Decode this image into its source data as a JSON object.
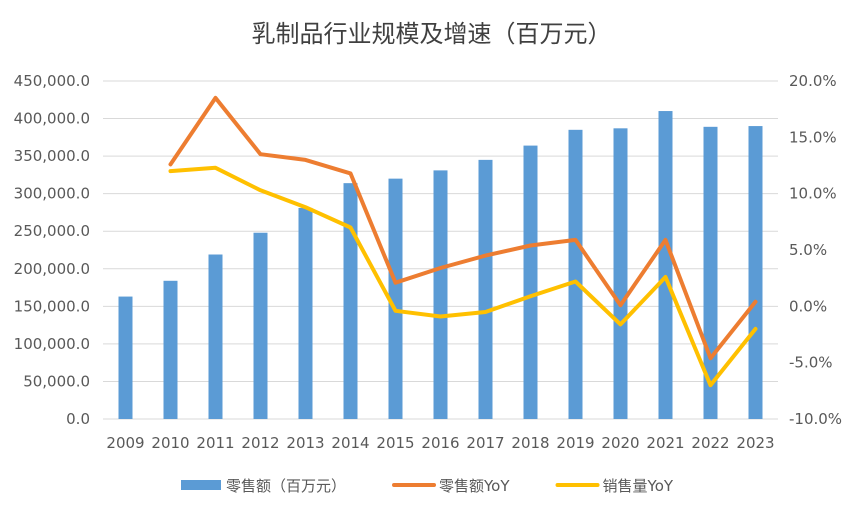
{
  "chart_data": {
    "type": "bar",
    "title": "乳制品行业规模及增速（百万元）",
    "categories": [
      "2009",
      "2010",
      "2011",
      "2012",
      "2013",
      "2014",
      "2015",
      "2016",
      "2017",
      "2018",
      "2019",
      "2020",
      "2021",
      "2022",
      "2023"
    ],
    "series": [
      {
        "name": "零售额（百万元）",
        "type": "bar",
        "axis": "left",
        "color": "#5B9BD5",
        "values": [
          163000,
          184000,
          219000,
          248000,
          281000,
          314000,
          320000,
          331000,
          345000,
          364000,
          385000,
          387000,
          410000,
          389000,
          390000
        ]
      },
      {
        "name": "零售额YoY",
        "type": "line",
        "axis": "right",
        "color": "#ED7D31",
        "values": [
          null,
          12.6,
          18.5,
          13.5,
          13.0,
          11.8,
          2.1,
          3.4,
          4.5,
          5.4,
          5.9,
          0.1,
          5.9,
          -4.6,
          0.4
        ]
      },
      {
        "name": "销售量YoY",
        "type": "line",
        "axis": "right",
        "color": "#FFC000",
        "values": [
          null,
          12.0,
          12.3,
          10.3,
          8.8,
          7.0,
          -0.4,
          -0.9,
          -0.5,
          0.9,
          2.2,
          -1.6,
          2.6,
          -7.0,
          -2.0
        ]
      }
    ],
    "left_axis": {
      "min": 0,
      "max": 450000,
      "step": 50000,
      "tick_labels": [
        "0.0",
        "50,000.0",
        "100,000.0",
        "150,000.0",
        "200,000.0",
        "250,000.0",
        "300,000.0",
        "350,000.0",
        "400,000.0",
        "450,000.0"
      ]
    },
    "right_axis": {
      "min": -10,
      "max": 20,
      "step": 5,
      "tick_labels": [
        "-10.0%",
        "-5.0%",
        "0.0%",
        "5.0%",
        "10.0%",
        "15.0%",
        "20.0%"
      ]
    },
    "grid": true,
    "legend": "bottom"
  }
}
